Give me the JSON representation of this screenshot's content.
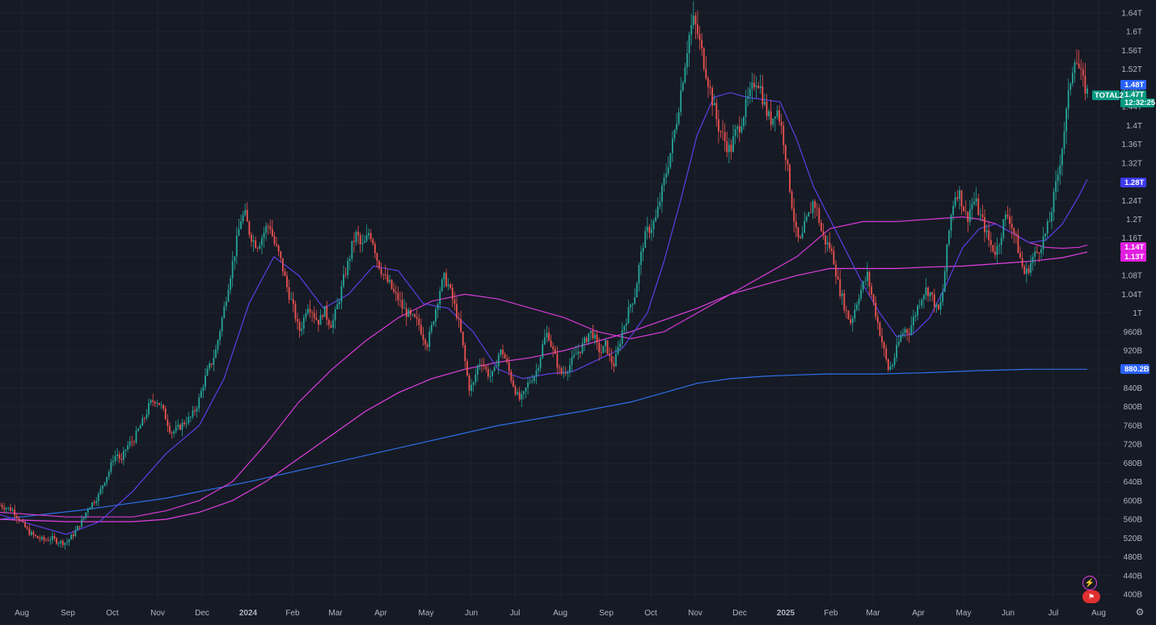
{
  "chart_data": {
    "type": "candlestick",
    "symbol": "TOTAL2",
    "x_ticks": [
      "Aug",
      "Sep",
      "Oct",
      "Nov",
      "Dec",
      "2024",
      "Feb",
      "Mar",
      "Apr",
      "May",
      "Jun",
      "Jul",
      "Aug",
      "Sep",
      "Oct",
      "Nov",
      "Dec",
      "2025",
      "Feb",
      "Mar",
      "Apr",
      "May",
      "Jun",
      "Jul",
      "Aug"
    ],
    "y_ticks": [
      "1.64T",
      "1.6T",
      "1.56T",
      "1.52T",
      "1.48T",
      "1.44T",
      "1.4T",
      "1.36T",
      "1.32T",
      "1.28T",
      "1.24T",
      "1.2T",
      "1.16T",
      "1.12T",
      "1.08T",
      "1.04T",
      "1T",
      "960B",
      "920B",
      "880B",
      "840B",
      "800B",
      "760B",
      "720B",
      "680B",
      "640B",
      "600B",
      "560B",
      "520B",
      "480B",
      "440B",
      "400B"
    ],
    "y_tick_values": [
      1640,
      1600,
      1560,
      1520,
      1480,
      1440,
      1400,
      1360,
      1320,
      1280,
      1240,
      1200,
      1160,
      1120,
      1080,
      1040,
      1000,
      960,
      920,
      880,
      840,
      800,
      760,
      720,
      680,
      640,
      600,
      560,
      520,
      480,
      440,
      400
    ],
    "ylim": [
      400,
      1640
    ],
    "unit_note": "values in billions",
    "price_path": [
      [
        0,
        590
      ],
      [
        1.5,
        580
      ],
      [
        2.5,
        555
      ],
      [
        3.5,
        532
      ],
      [
        4.5,
        520
      ],
      [
        5.5,
        515
      ],
      [
        6.2,
        520
      ],
      [
        7,
        512
      ],
      [
        8,
        510
      ],
      [
        9,
        532
      ],
      [
        10,
        560
      ],
      [
        10.6,
        585
      ],
      [
        11.3,
        598
      ],
      [
        11.9,
        612
      ],
      [
        12.5,
        640
      ],
      [
        13.2,
        665
      ],
      [
        13.6,
        690
      ],
      [
        14.2,
        700
      ],
      [
        14.6,
        680
      ],
      [
        15,
        705
      ],
      [
        15.5,
        720
      ],
      [
        16.1,
        728
      ],
      [
        16.5,
        745
      ],
      [
        17,
        762
      ],
      [
        17.5,
        780
      ],
      [
        18,
        805
      ],
      [
        18.6,
        815
      ],
      [
        19,
        812
      ],
      [
        19.5,
        798
      ],
      [
        20,
        775
      ],
      [
        20.6,
        745
      ],
      [
        21.2,
        750
      ],
      [
        21.8,
        760
      ],
      [
        22.4,
        770
      ],
      [
        22.9,
        775
      ],
      [
        23.4,
        790
      ],
      [
        23.9,
        810
      ],
      [
        24.5,
        850
      ],
      [
        25,
        875
      ],
      [
        25.5,
        895
      ],
      [
        26,
        920
      ],
      [
        26.5,
        965
      ],
      [
        27,
        1010
      ],
      [
        27.5,
        1060
      ],
      [
        28,
        1105
      ],
      [
        28.5,
        1150
      ],
      [
        29,
        1200
      ],
      [
        29.5,
        1210
      ],
      [
        30,
        1175
      ],
      [
        30.5,
        1155
      ],
      [
        31,
        1145
      ],
      [
        31.5,
        1160
      ],
      [
        32,
        1180
      ],
      [
        32.5,
        1190
      ],
      [
        33,
        1150
      ],
      [
        33.5,
        1130
      ],
      [
        34,
        1100
      ],
      [
        34.5,
        1060
      ],
      [
        35,
        1030
      ],
      [
        35.5,
        1000
      ],
      [
        36,
        960
      ],
      [
        36.5,
        980
      ],
      [
        37,
        1020
      ],
      [
        37.5,
        1010
      ],
      [
        38,
        990
      ],
      [
        38.5,
        980
      ],
      [
        39,
        1010
      ],
      [
        39.5,
        985
      ],
      [
        40,
        975
      ],
      [
        40.5,
        1005
      ],
      [
        41,
        1040
      ],
      [
        41.5,
        1080
      ],
      [
        42,
        1110
      ],
      [
        42.5,
        1150
      ],
      [
        43,
        1170
      ],
      [
        43.5,
        1140
      ],
      [
        44,
        1150
      ],
      [
        44.5,
        1175
      ],
      [
        45,
        1150
      ],
      [
        45.5,
        1110
      ],
      [
        46,
        1090
      ],
      [
        46.5,
        1070
      ],
      [
        47,
        1060
      ],
      [
        47.5,
        1040
      ],
      [
        48,
        1030
      ],
      [
        48.5,
        1010
      ],
      [
        49,
        1000
      ],
      [
        49.5,
        990
      ],
      [
        50,
        985
      ],
      [
        50.5,
        975
      ],
      [
        51,
        950
      ],
      [
        51.5,
        935
      ],
      [
        52,
        970
      ],
      [
        52.5,
        1010
      ],
      [
        53,
        1050
      ],
      [
        53.5,
        1075
      ],
      [
        54,
        1060
      ],
      [
        54.5,
        1030
      ],
      [
        55,
        1000
      ],
      [
        55.5,
        960
      ],
      [
        56,
        900
      ],
      [
        56.5,
        840
      ],
      [
        57,
        845
      ],
      [
        57.5,
        885
      ],
      [
        58,
        900
      ],
      [
        58.5,
        880
      ],
      [
        59,
        865
      ],
      [
        59.5,
        870
      ],
      [
        60,
        910
      ],
      [
        60.5,
        920
      ],
      [
        61,
        895
      ],
      [
        61.5,
        865
      ],
      [
        62,
        840
      ],
      [
        62.5,
        815
      ],
      [
        63,
        820
      ],
      [
        63.5,
        845
      ],
      [
        64,
        860
      ],
      [
        64.5,
        870
      ],
      [
        65,
        900
      ],
      [
        65.5,
        940
      ],
      [
        66,
        960
      ],
      [
        66.5,
        925
      ],
      [
        67,
        900
      ],
      [
        67.5,
        870
      ],
      [
        68,
        875
      ],
      [
        68.5,
        885
      ],
      [
        69,
        900
      ],
      [
        69.5,
        915
      ],
      [
        70,
        925
      ],
      [
        70.5,
        940
      ],
      [
        71,
        960
      ],
      [
        71.5,
        955
      ],
      [
        72,
        925
      ],
      [
        72.5,
        915
      ],
      [
        73,
        935
      ],
      [
        73.5,
        900
      ],
      [
        74,
        890
      ],
      [
        74.5,
        925
      ],
      [
        75,
        965
      ],
      [
        75.5,
        990
      ],
      [
        76,
        1020
      ],
      [
        76.5,
        1040
      ],
      [
        77,
        1100
      ],
      [
        77.5,
        1150
      ],
      [
        78,
        1175
      ],
      [
        78.5,
        1185
      ],
      [
        79,
        1200
      ],
      [
        79.5,
        1240
      ],
      [
        80,
        1280
      ],
      [
        80.5,
        1320
      ],
      [
        81,
        1360
      ],
      [
        81.5,
        1410
      ],
      [
        82,
        1470
      ],
      [
        82.5,
        1530
      ],
      [
        83,
        1590
      ],
      [
        83.5,
        1625
      ],
      [
        84,
        1600
      ],
      [
        84.5,
        1560
      ],
      [
        85,
        1520
      ],
      [
        85.5,
        1480
      ],
      [
        86,
        1440
      ],
      [
        86.5,
        1400
      ],
      [
        87,
        1380
      ],
      [
        87.5,
        1360
      ],
      [
        88,
        1345
      ],
      [
        88.5,
        1380
      ],
      [
        89,
        1395
      ],
      [
        89.5,
        1420
      ],
      [
        90,
        1450
      ],
      [
        90.5,
        1470
      ],
      [
        91,
        1500
      ],
      [
        91.5,
        1490
      ],
      [
        92,
        1450
      ],
      [
        92.5,
        1420
      ],
      [
        93,
        1410
      ],
      [
        93.5,
        1440
      ],
      [
        94,
        1410
      ],
      [
        94.5,
        1360
      ],
      [
        95,
        1290
      ],
      [
        95.5,
        1220
      ],
      [
        96,
        1160
      ],
      [
        96.5,
        1150
      ],
      [
        97,
        1190
      ],
      [
        97.5,
        1210
      ],
      [
        98,
        1240
      ],
      [
        98.5,
        1215
      ],
      [
        99,
        1170
      ],
      [
        99.5,
        1150
      ],
      [
        100,
        1140
      ],
      [
        100.5,
        1110
      ],
      [
        101,
        1060
      ],
      [
        101.5,
        1030
      ],
      [
        102,
        1000
      ],
      [
        102.5,
        980
      ],
      [
        103,
        1010
      ],
      [
        103.5,
        1040
      ],
      [
        104,
        1060
      ],
      [
        104.5,
        1080
      ],
      [
        105,
        1040
      ],
      [
        105.5,
        1000
      ],
      [
        106,
        960
      ],
      [
        106.5,
        920
      ],
      [
        107,
        880
      ],
      [
        107.5,
        890
      ],
      [
        108,
        920
      ],
      [
        108.5,
        950
      ],
      [
        109,
        965
      ],
      [
        109.5,
        960
      ],
      [
        110,
        985
      ],
      [
        110.5,
        1010
      ],
      [
        111,
        1035
      ],
      [
        111.5,
        1050
      ],
      [
        112,
        1045
      ],
      [
        112.5,
        1025
      ],
      [
        113,
        1000
      ],
      [
        113.5,
        1030
      ],
      [
        114,
        1120
      ],
      [
        114.5,
        1200
      ],
      [
        115,
        1250
      ],
      [
        115.5,
        1260
      ],
      [
        116,
        1230
      ],
      [
        116.5,
        1200
      ],
      [
        117,
        1230
      ],
      [
        117.5,
        1240
      ],
      [
        118,
        1210
      ],
      [
        118.5,
        1190
      ],
      [
        119,
        1160
      ],
      [
        119.5,
        1140
      ],
      [
        120,
        1130
      ],
      [
        120.5,
        1160
      ],
      [
        121,
        1200
      ],
      [
        121.5,
        1210
      ],
      [
        122,
        1180
      ],
      [
        122.5,
        1150
      ],
      [
        123,
        1110
      ],
      [
        123.5,
        1080
      ],
      [
        124,
        1100
      ],
      [
        124.5,
        1120
      ],
      [
        125,
        1130
      ],
      [
        125.5,
        1150
      ],
      [
        126,
        1170
      ],
      [
        126.5,
        1200
      ],
      [
        127,
        1250
      ],
      [
        127.5,
        1300
      ],
      [
        128,
        1360
      ],
      [
        128.5,
        1430
      ],
      [
        129,
        1500
      ],
      [
        129.5,
        1550
      ],
      [
        130,
        1520
      ],
      [
        130.5,
        1490
      ],
      [
        131,
        1470
      ]
    ],
    "ma_purple": [
      [
        0,
        570
      ],
      [
        4,
        548
      ],
      [
        8,
        528
      ],
      [
        12,
        555
      ],
      [
        16,
        620
      ],
      [
        20,
        700
      ],
      [
        24,
        760
      ],
      [
        27,
        860
      ],
      [
        30,
        1020
      ],
      [
        33,
        1120
      ],
      [
        36,
        1080
      ],
      [
        39,
        1010
      ],
      [
        42,
        1040
      ],
      [
        45,
        1100
      ],
      [
        48,
        1090
      ],
      [
        51,
        1020
      ],
      [
        54,
        1010
      ],
      [
        57,
        960
      ],
      [
        60,
        880
      ],
      [
        63,
        860
      ],
      [
        66,
        870
      ],
      [
        69,
        875
      ],
      [
        72,
        900
      ],
      [
        75,
        925
      ],
      [
        78,
        1000
      ],
      [
        80,
        1110
      ],
      [
        82,
        1240
      ],
      [
        84,
        1380
      ],
      [
        86,
        1460
      ],
      [
        88,
        1470
      ],
      [
        90,
        1460
      ],
      [
        92,
        1455
      ],
      [
        94,
        1450
      ],
      [
        96,
        1370
      ],
      [
        98,
        1270
      ],
      [
        100,
        1200
      ],
      [
        102,
        1130
      ],
      [
        104,
        1060
      ],
      [
        106,
        1000
      ],
      [
        108,
        950
      ],
      [
        110,
        955
      ],
      [
        112,
        990
      ],
      [
        114,
        1060
      ],
      [
        116,
        1140
      ],
      [
        118,
        1180
      ],
      [
        120,
        1190
      ],
      [
        122,
        1170
      ],
      [
        124,
        1150
      ],
      [
        126,
        1155
      ],
      [
        128,
        1190
      ],
      [
        130,
        1250
      ],
      [
        131,
        1285
      ]
    ],
    "ma_magenta1": [
      [
        0,
        575
      ],
      [
        8,
        565
      ],
      [
        16,
        565
      ],
      [
        20,
        578
      ],
      [
        24,
        600
      ],
      [
        28,
        640
      ],
      [
        32,
        720
      ],
      [
        36,
        810
      ],
      [
        40,
        880
      ],
      [
        44,
        940
      ],
      [
        48,
        990
      ],
      [
        52,
        1025
      ],
      [
        56,
        1040
      ],
      [
        60,
        1030
      ],
      [
        64,
        1010
      ],
      [
        68,
        990
      ],
      [
        72,
        960
      ],
      [
        76,
        945
      ],
      [
        80,
        960
      ],
      [
        84,
        1000
      ],
      [
        88,
        1040
      ],
      [
        92,
        1080
      ],
      [
        96,
        1120
      ],
      [
        100,
        1180
      ],
      [
        104,
        1195
      ],
      [
        108,
        1195
      ],
      [
        112,
        1200
      ],
      [
        116,
        1205
      ],
      [
        118,
        1200
      ],
      [
        120,
        1190
      ],
      [
        122,
        1170
      ],
      [
        124,
        1150
      ],
      [
        126,
        1140
      ],
      [
        128,
        1138
      ],
      [
        130,
        1140
      ],
      [
        131,
        1145
      ]
    ],
    "ma_magenta2": [
      [
        0,
        560
      ],
      [
        8,
        555
      ],
      [
        16,
        555
      ],
      [
        20,
        560
      ],
      [
        24,
        575
      ],
      [
        28,
        600
      ],
      [
        32,
        640
      ],
      [
        36,
        690
      ],
      [
        40,
        740
      ],
      [
        44,
        790
      ],
      [
        48,
        830
      ],
      [
        52,
        860
      ],
      [
        56,
        880
      ],
      [
        60,
        895
      ],
      [
        64,
        905
      ],
      [
        68,
        920
      ],
      [
        72,
        940
      ],
      [
        76,
        960
      ],
      [
        80,
        985
      ],
      [
        84,
        1010
      ],
      [
        88,
        1040
      ],
      [
        92,
        1060
      ],
      [
        96,
        1080
      ],
      [
        100,
        1095
      ],
      [
        104,
        1095
      ],
      [
        108,
        1095
      ],
      [
        112,
        1098
      ],
      [
        116,
        1100
      ],
      [
        120,
        1105
      ],
      [
        124,
        1110
      ],
      [
        128,
        1118
      ],
      [
        131,
        1130
      ]
    ],
    "ma_blue": [
      [
        0,
        560
      ],
      [
        10,
        580
      ],
      [
        20,
        605
      ],
      [
        30,
        640
      ],
      [
        40,
        680
      ],
      [
        50,
        720
      ],
      [
        60,
        760
      ],
      [
        70,
        790
      ],
      [
        76,
        810
      ],
      [
        80,
        830
      ],
      [
        84,
        850
      ],
      [
        88,
        860
      ],
      [
        92,
        865
      ],
      [
        96,
        868
      ],
      [
        100,
        870
      ],
      [
        106,
        870
      ],
      [
        112,
        873
      ],
      [
        118,
        877
      ],
      [
        124,
        880
      ],
      [
        131,
        880
      ]
    ]
  },
  "price_badges": [
    {
      "label": "1.48T",
      "color": "#2962ff"
    },
    {
      "label": "1.47T",
      "color": "#089981"
    },
    {
      "label": "12:32:25",
      "color": "#089981"
    },
    {
      "label": "1.28T",
      "color": "#3d3cf0"
    },
    {
      "label": "1.14T",
      "color": "#e11ee1"
    },
    {
      "label": "1.13T",
      "color": "#e11ee1"
    },
    {
      "label": "880.2B",
      "color": "#2962ff"
    }
  ],
  "symbol_tag": {
    "label": "TOTAL2",
    "color": "#089981"
  },
  "colors": {
    "background": "#161a25",
    "grid": "#1e222d",
    "up": "#26a69a",
    "down": "#ef5350",
    "ma_purple": "#5d3ee6",
    "ma_magenta1": "#d63ad6",
    "ma_magenta2": "#e040e0",
    "ma_blue": "#2f6fe8",
    "text": "#b2b5be"
  },
  "icons": {
    "lightning": "lightning-icon",
    "flag": "flag-icon",
    "settings": "gear-icon"
  }
}
